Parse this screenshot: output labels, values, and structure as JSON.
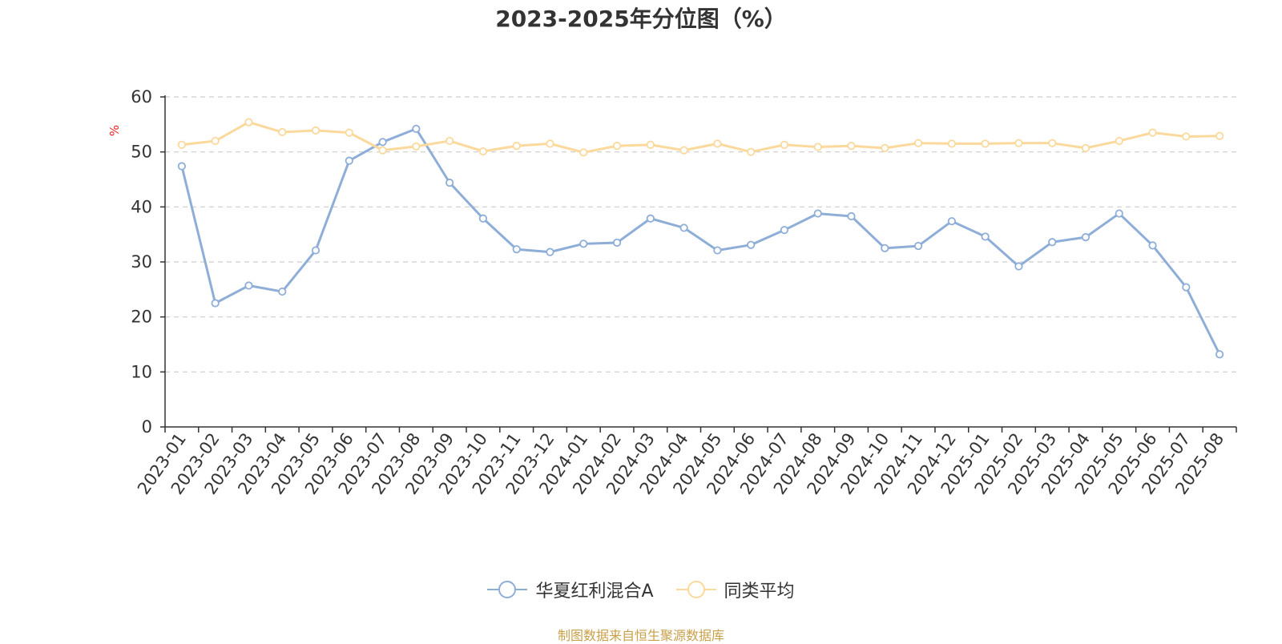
{
  "chart_data": {
    "type": "line",
    "title": "2023-2025年分位图（%）",
    "xlabel": "",
    "ylabel": "%",
    "ylim": [
      0,
      60
    ],
    "yticks": [
      0,
      10,
      20,
      30,
      40,
      50,
      60
    ],
    "grid": true,
    "legend_position": "bottom",
    "categories": [
      "2023-01",
      "2023-02",
      "2023-03",
      "2023-04",
      "2023-05",
      "2023-06",
      "2023-07",
      "2023-08",
      "2023-09",
      "2023-10",
      "2023-11",
      "2023-12",
      "2024-01",
      "2024-02",
      "2024-03",
      "2024-04",
      "2024-05",
      "2024-06",
      "2024-07",
      "2024-08",
      "2024-09",
      "2024-10",
      "2024-11",
      "2024-12",
      "2025-01",
      "2025-02",
      "2025-03",
      "2025-04",
      "2025-05",
      "2025-06",
      "2025-07",
      "2025-08"
    ],
    "series": [
      {
        "name": "华夏红利混合A",
        "color": "#8eaed8",
        "values": [
          47.4,
          22.5,
          25.7,
          24.6,
          32.1,
          48.4,
          51.8,
          54.2,
          44.4,
          37.9,
          32.3,
          31.8,
          33.3,
          33.5,
          37.9,
          36.2,
          32.1,
          33.1,
          35.8,
          38.8,
          38.3,
          32.5,
          32.9,
          37.4,
          34.6,
          29.2,
          33.6,
          34.5,
          38.8,
          33.0,
          25.4,
          13.2
        ]
      },
      {
        "name": "同类平均",
        "color": "#fbd99c",
        "values": [
          51.3,
          52.0,
          55.4,
          53.6,
          53.9,
          53.5,
          50.3,
          51.0,
          52.0,
          50.1,
          51.1,
          51.5,
          49.9,
          51.1,
          51.3,
          50.3,
          51.5,
          50.0,
          51.3,
          50.9,
          51.1,
          50.7,
          51.6,
          51.5,
          51.5,
          51.6,
          51.6,
          50.7,
          52.0,
          53.5,
          52.8,
          52.9
        ]
      }
    ]
  },
  "source_note": "制图数据来自恒生聚源数据库"
}
